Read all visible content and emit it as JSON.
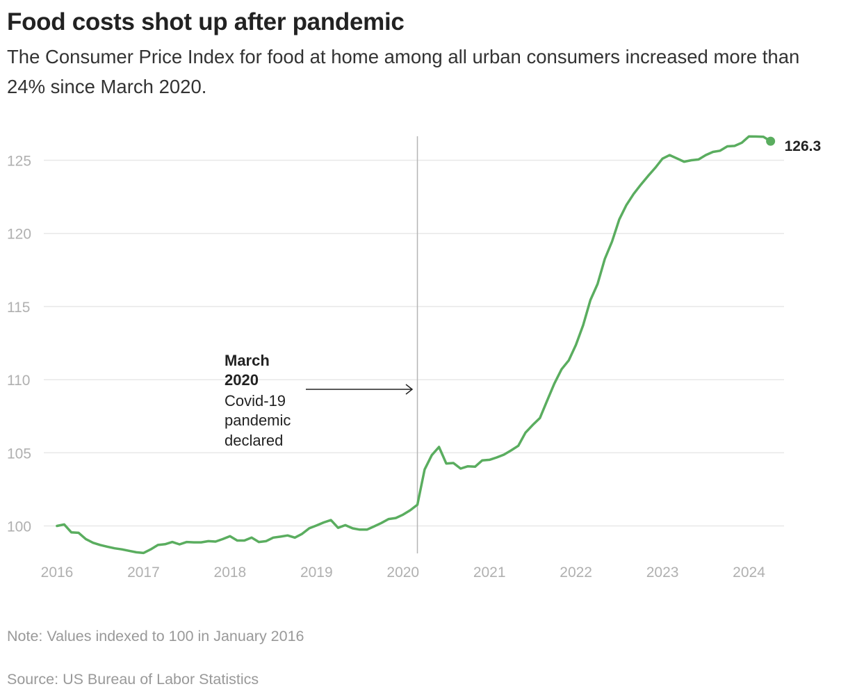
{
  "header": {
    "title": "Food costs shot up after pandemic",
    "subtitle": "The Consumer Price Index for food at home among all urban consumers increased more than 24% since March 2020."
  },
  "footer": {
    "note": "Note: Values indexed to 100 in January 2016",
    "source": "Source: US Bureau of Labor Statistics"
  },
  "chart_data": {
    "type": "line",
    "title": "Food costs shot up after pandemic",
    "xlabel": "",
    "ylabel": "",
    "x_start": "2016-01",
    "x_frequency": "monthly",
    "x_ticks": [
      "2016",
      "2017",
      "2018",
      "2019",
      "2020",
      "2021",
      "2022",
      "2023",
      "2024"
    ],
    "y_ticks": [
      100,
      105,
      110,
      115,
      120,
      125
    ],
    "ylim": [
      98,
      127
    ],
    "grid": "horizontal",
    "line_color": "#5aad5f",
    "series": [
      {
        "values": [
          100.0,
          100.1,
          99.56,
          99.53,
          99.1,
          98.85,
          98.7,
          98.58,
          98.47,
          98.4,
          98.3,
          98.2,
          98.15,
          98.4,
          98.7,
          98.75,
          98.9,
          98.74,
          98.9,
          98.88,
          98.88,
          98.96,
          98.93,
          99.1,
          99.3,
          99.0,
          99.0,
          99.2,
          98.9,
          98.96,
          99.2,
          99.27,
          99.35,
          99.2,
          99.46,
          99.84,
          100.03,
          100.24,
          100.4,
          99.87,
          100.05,
          99.84,
          99.75,
          99.75,
          99.97,
          100.2,
          100.47,
          100.54,
          100.77,
          101.07,
          101.45,
          103.86,
          104.84,
          105.4,
          104.27,
          104.3,
          103.92,
          104.08,
          104.05,
          104.48,
          104.52,
          104.68,
          104.87,
          105.16,
          105.48,
          106.38,
          106.9,
          107.38,
          108.57,
          109.73,
          110.71,
          111.32,
          112.38,
          113.73,
          115.44,
          116.54,
          118.25,
          119.44,
          120.95,
          121.94,
          122.7,
          123.33,
          123.92,
          124.48,
          125.11,
          125.35,
          125.13,
          124.9,
          125.0,
          125.05,
          125.35,
          125.57,
          125.65,
          125.95,
          125.98,
          126.2,
          126.63,
          126.62,
          126.6,
          126.3
        ]
      }
    ],
    "end_label": "126.3",
    "annotation": {
      "at": "2020-03",
      "title_lines": [
        "March",
        "2020"
      ],
      "body_lines": [
        "Covid-19",
        "pandemic",
        "declared"
      ]
    }
  }
}
